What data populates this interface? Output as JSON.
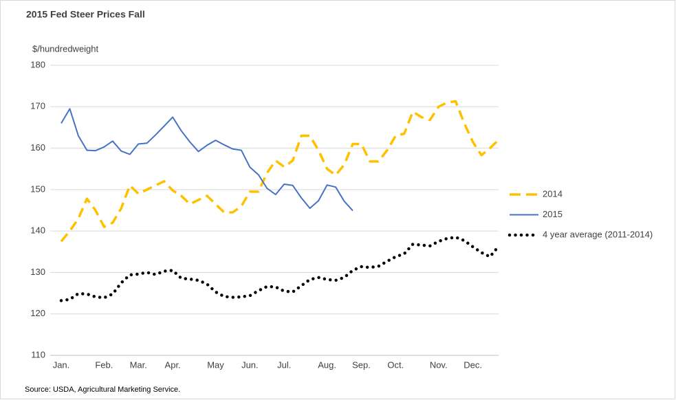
{
  "chart_data": {
    "type": "line",
    "title": "2015 Fed Steer Prices Fall",
    "y_label": "$/hundredweight",
    "source": "Source: USDA, Agricultural Marketing Service.",
    "categories": [
      "Jan.",
      null,
      null,
      null,
      null,
      "Feb.",
      null,
      null,
      null,
      "Mar.",
      null,
      null,
      null,
      "Apr.",
      null,
      null,
      null,
      null,
      "May",
      null,
      null,
      null,
      "Jun.",
      null,
      null,
      null,
      "Jul.",
      null,
      null,
      null,
      null,
      "Aug.",
      null,
      null,
      null,
      "Sep.",
      null,
      null,
      null,
      "Oct.",
      null,
      null,
      null,
      null,
      "Nov.",
      null,
      null,
      null,
      "Dec.",
      null,
      null,
      null
    ],
    "ylim": [
      110,
      180
    ],
    "yticks": [
      110,
      120,
      130,
      140,
      150,
      160,
      170,
      180
    ],
    "grid": true,
    "legend": "right",
    "series": [
      {
        "name": "2014",
        "color": "#ffc000",
        "line_style": "dashed",
        "values": [
          137.5,
          140,
          143,
          147.8,
          145,
          141,
          142,
          145.5,
          151,
          149,
          150,
          151,
          152,
          149.8,
          148.5,
          146.5,
          147.5,
          148.5,
          146.5,
          144.5,
          144.5,
          146,
          149.5,
          149.5,
          154,
          157,
          155.5,
          157,
          163,
          163,
          159.5,
          155,
          153.5,
          156,
          161,
          161,
          156.8,
          156.8,
          159.5,
          163,
          163.5,
          168.8,
          167.5,
          166.8,
          170,
          171,
          171.3,
          166,
          161.5,
          158.3,
          160,
          162
        ]
      },
      {
        "name": "2015",
        "color": "#4472c4",
        "line_style": "solid",
        "values": [
          166,
          169.5,
          163,
          159.5,
          159.4,
          160.3,
          161.7,
          159.3,
          158.5,
          161,
          161.2,
          163.2,
          165.3,
          167.5,
          164.2,
          161.5,
          159.2,
          160.7,
          161.9,
          160.8,
          159.8,
          159.5,
          155.4,
          153.6,
          150.3,
          148.8,
          151.3,
          151,
          148,
          145.5,
          147.3,
          151.1,
          150.6,
          147.2,
          144.9,
          null,
          null,
          null,
          null,
          null,
          null,
          null,
          null,
          null,
          null,
          null,
          null,
          null,
          null,
          null,
          null,
          null
        ]
      },
      {
        "name": "4 year average (2011-2014)",
        "color": "#000000",
        "line_style": "dotted",
        "values": [
          123.2,
          123.5,
          124.9,
          124.8,
          124.1,
          123.9,
          124.8,
          127.5,
          129.4,
          129.6,
          130,
          129.5,
          130.3,
          130.5,
          128.6,
          128.4,
          128.1,
          127.2,
          125.3,
          124.2,
          124.0,
          124.1,
          124.4,
          125.6,
          126.6,
          126.5,
          125.5,
          125.3,
          126.8,
          128.3,
          128.8,
          128.3,
          128.1,
          128.8,
          130.5,
          131.4,
          131.2,
          131.5,
          132.7,
          133.8,
          134.5,
          136.8,
          136.6,
          136.4,
          137.5,
          138.2,
          138.5,
          137.7,
          136.2,
          134.8,
          133.8,
          136.3
        ]
      }
    ]
  }
}
